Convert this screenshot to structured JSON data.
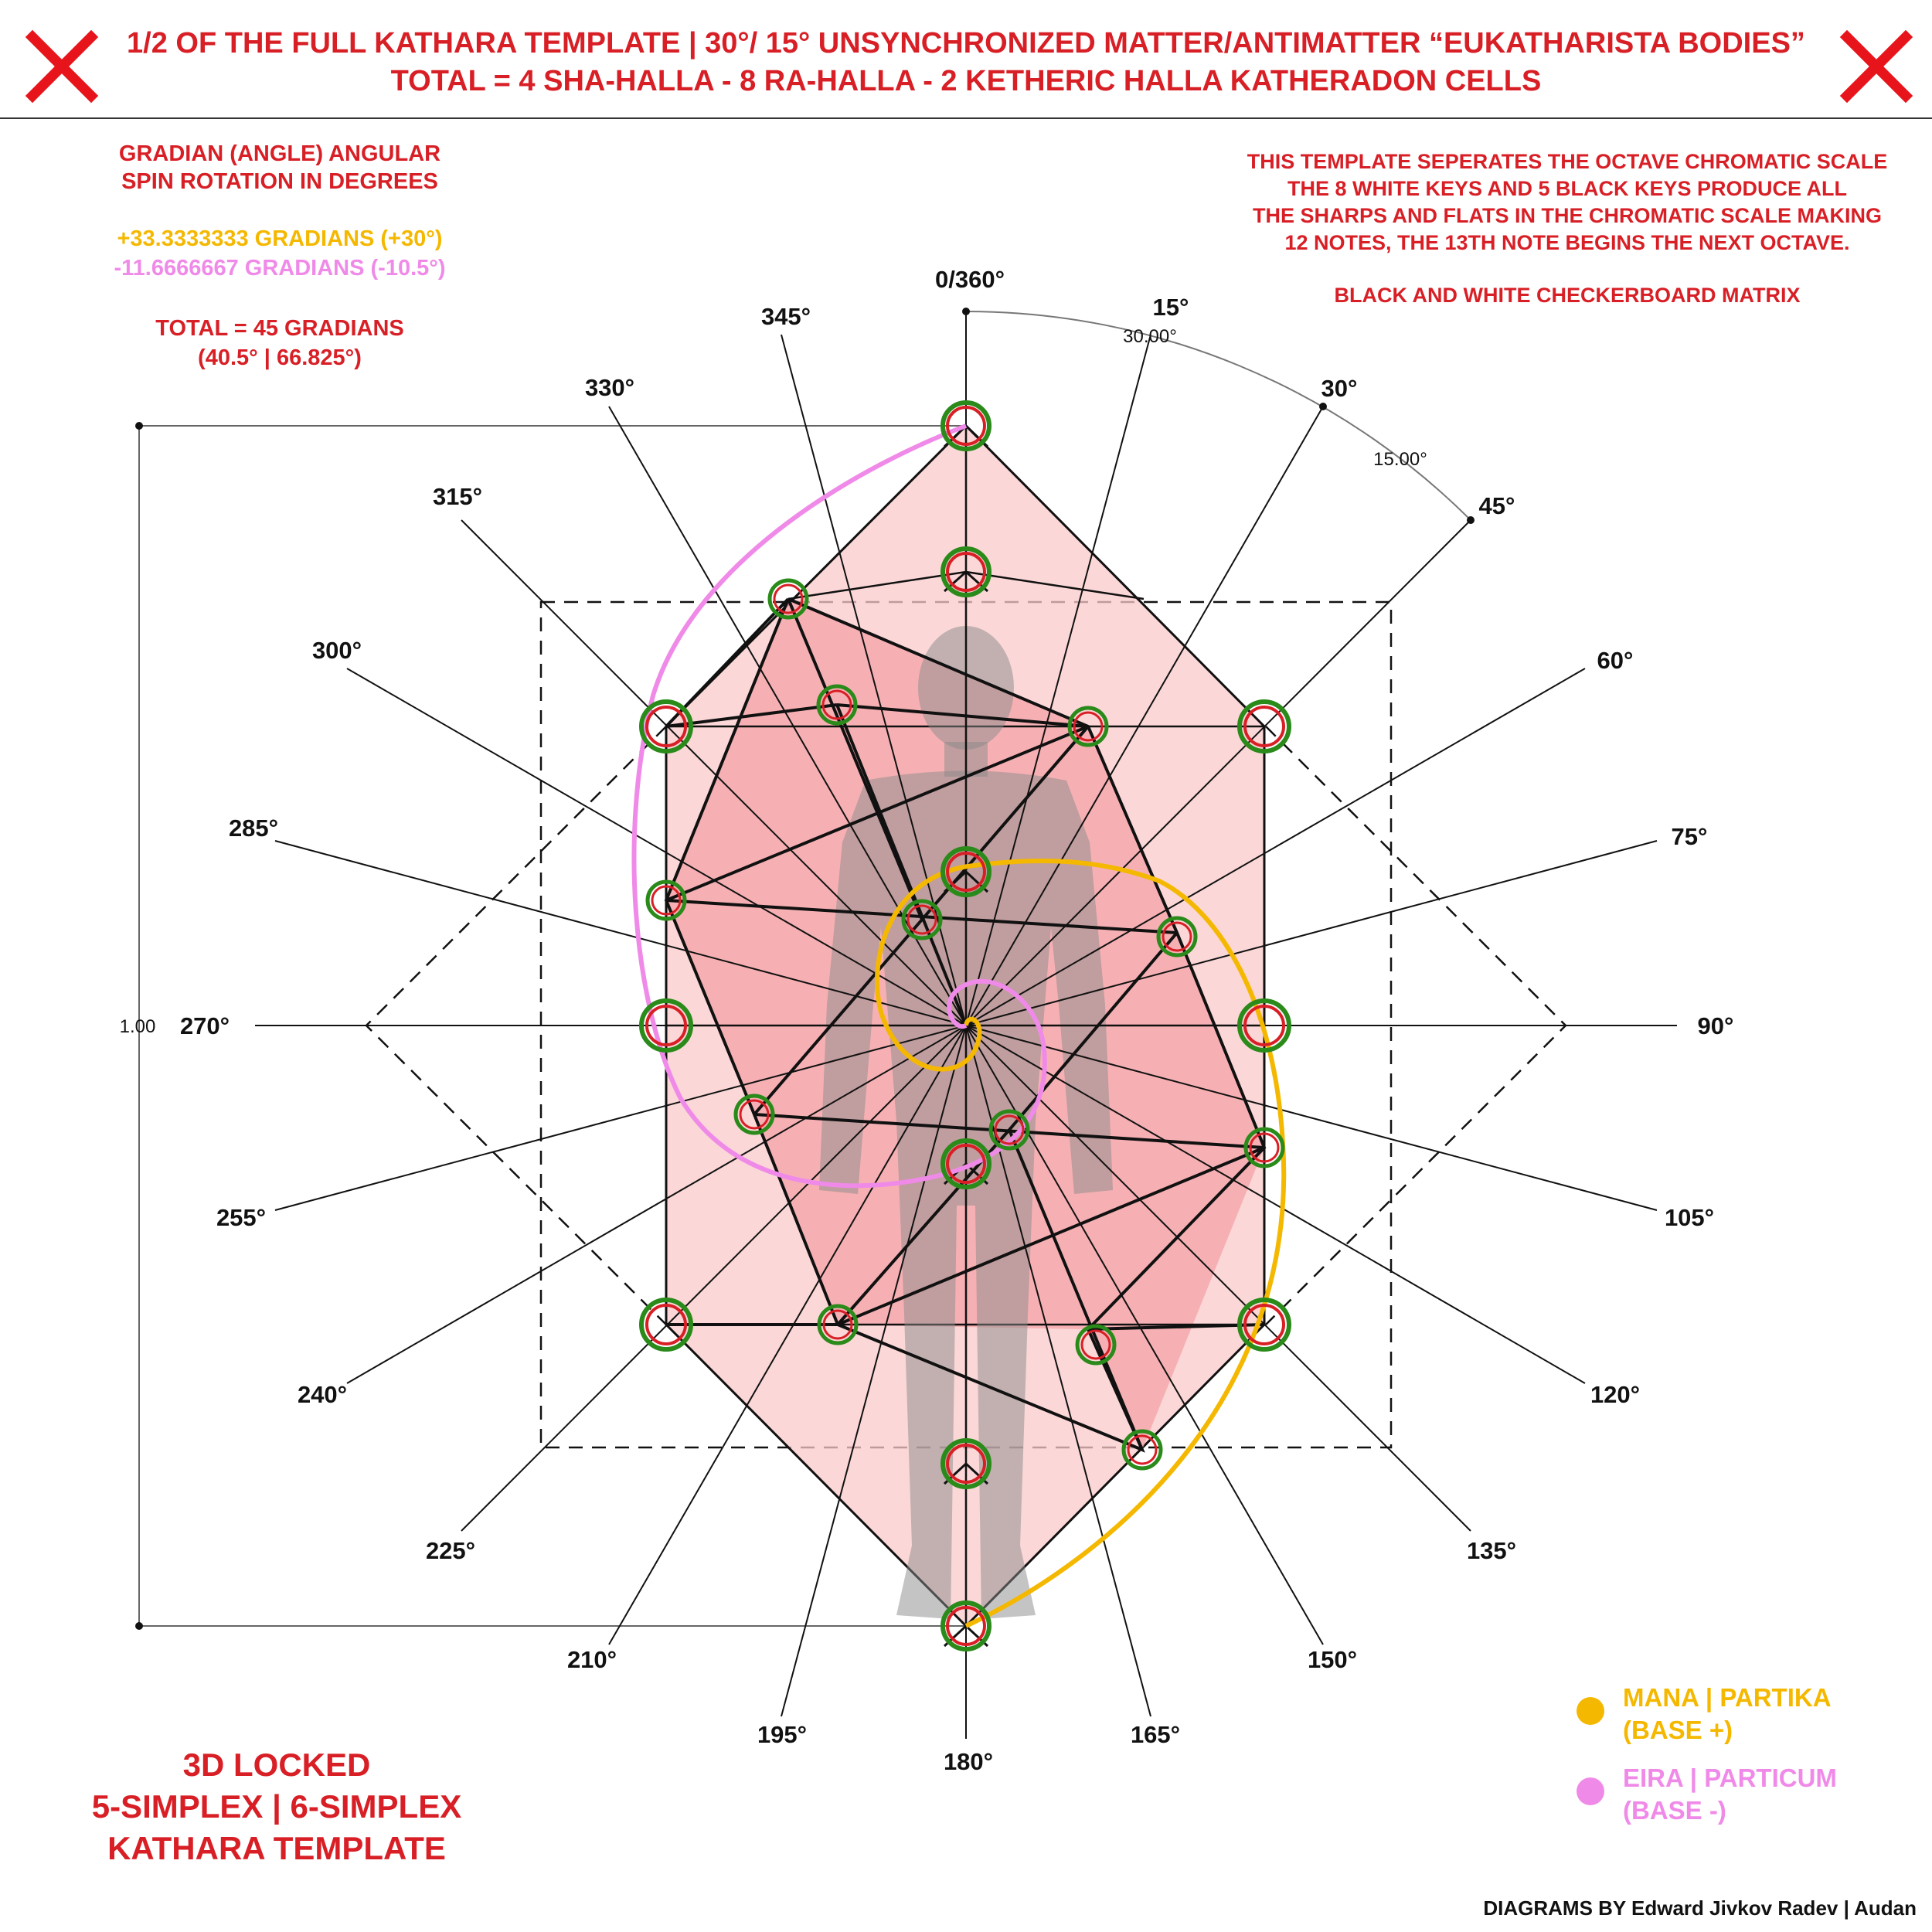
{
  "header": {
    "title_line1": "1/2 OF THE FULL KATHARA TEMPLATE | 30°/ 15° UNSYNCHRONIZED MATTER/ANTIMATTER “EUKATHARISTA BODIES”",
    "title_line2": "TOTAL = 4 SHA-HALLA - 8 RA-HALLA - 2 KETHERIC HALLA KATHERADON CELLS",
    "left_icon": "red-x-icon",
    "right_icon": "red-x-icon"
  },
  "left_notes": {
    "line1": "GRADIAN (ANGLE) ANGULAR",
    "line2": "SPIN ROTATION IN DEGREES",
    "gold_line": "+33.3333333 GRADIANS (+30°)",
    "pink_line": "-11.6666667 GRADIANS (-10.5°)",
    "total_line1": "TOTAL = 45 GRADIANS",
    "total_line2": "(40.5° | 66.825°)"
  },
  "right_notes": {
    "line1": "THIS TEMPLATE SEPERATES THE OCTAVE CHROMATIC SCALE",
    "line2": "THE 8 WHITE KEYS AND 5 BLACK KEYS PRODUCE ALL",
    "line3": "THE SHARPS AND FLATS IN THE CHROMATIC SCALE MAKING",
    "line4": "12 NOTES, THE 13TH NOTE BEGINS THE NEXT OCTAVE.",
    "line5": "BLACK AND WHITE CHECKERBOARD MATRIX"
  },
  "angles": {
    "a0": "0/360°",
    "a15": "15°",
    "a30": "30°",
    "a45": "45°",
    "a60": "60°",
    "a75": "75°",
    "a90": "90°",
    "a105": "105°",
    "a120": "120°",
    "a135": "135°",
    "a150": "150°",
    "a165": "165°",
    "a180": "180°",
    "a195": "195°",
    "a210": "210°",
    "a225": "225°",
    "a240": "240°",
    "a255": "255°",
    "a270": "270°",
    "a285": "285°",
    "a300": "300°",
    "a315": "315°",
    "a330": "330°",
    "a345": "345°"
  },
  "dimensions": {
    "arc30": "30.00°",
    "arc15": "15.00°",
    "height": "1.00"
  },
  "legend": {
    "mana": "MANA | PARTIKA",
    "mana_sub": "(BASE +)",
    "eira": "EIRA | PARTICUM",
    "eira_sub": "(BASE -)",
    "mana_color": "#f5b800",
    "eira_color": "#f08ae8"
  },
  "footer": {
    "line1": "3D LOCKED",
    "line2": "5-SIMPLEX | 6-SIMPLEX",
    "line3": "KATHARA TEMPLATE",
    "credit": "DIAGRAMS BY Edward Jivkov Radev | Audan"
  }
}
